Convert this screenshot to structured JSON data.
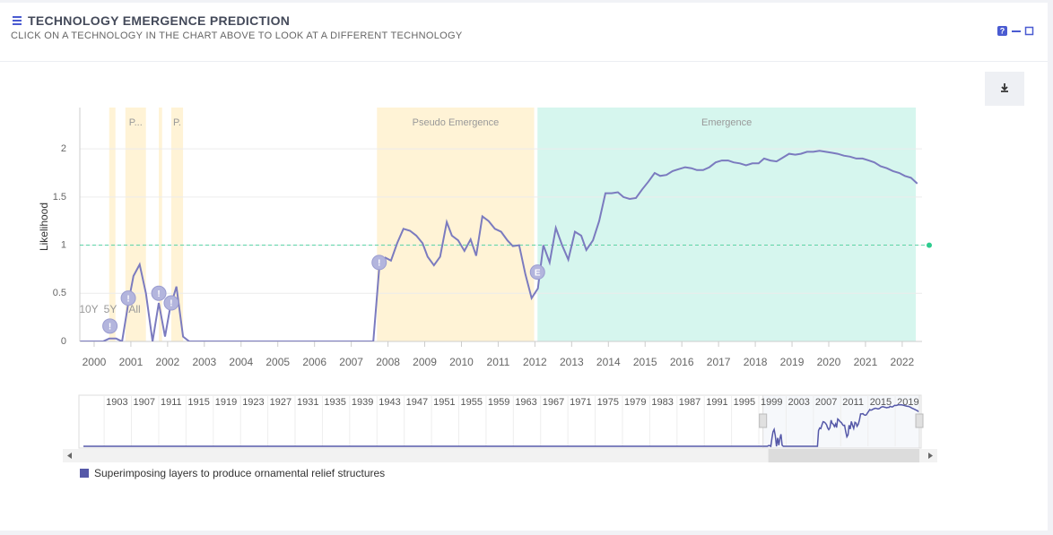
{
  "header": {
    "title": "TECHNOLOGY EMERGENCE PREDICTION",
    "subtitle": "CLICK ON A TECHNOLOGY IN THE CHART ABOVE TO LOOK AT A DIFFERENT TECHNOLOGY"
  },
  "range_buttons": [
    "10Y",
    "5Y",
    "All"
  ],
  "chart_data": {
    "type": "line",
    "y_label": "Likelihood",
    "x": [
      1999.62,
      2000.24,
      2000.41,
      2000.6,
      2000.76,
      2000.93,
      2001.07,
      2001.24,
      2001.41,
      2001.59,
      2001.76,
      2001.93,
      2002.07,
      2002.24,
      2002.42,
      2002.59,
      2007.6,
      2007.76,
      2007.93,
      2008.08,
      2008.25,
      2008.42,
      2008.6,
      2008.77,
      2008.94,
      2009.08,
      2009.25,
      2009.42,
      2009.6,
      2009.74,
      2009.91,
      2010.08,
      2010.25,
      2010.4,
      2010.57,
      2010.74,
      2010.91,
      2011.08,
      2011.25,
      2011.4,
      2011.57,
      2011.74,
      2011.91,
      2012.08,
      2012.23,
      2012.4,
      2012.57,
      2012.74,
      2012.91,
      2013.09,
      2013.26,
      2013.4,
      2013.58,
      2013.75,
      2013.92,
      2014.09,
      2014.26,
      2014.41,
      2014.58,
      2014.75,
      2014.92,
      2015.09,
      2015.26,
      2015.41,
      2015.58,
      2015.75,
      2015.92,
      2016.09,
      2016.26,
      2016.41,
      2016.58,
      2016.75,
      2016.92,
      2017.09,
      2017.26,
      2017.41,
      2017.58,
      2017.75,
      2017.92,
      2018.09,
      2018.24,
      2018.41,
      2018.58,
      2018.75,
      2018.92,
      2019.09,
      2019.24,
      2019.41,
      2019.58,
      2019.75,
      2019.92,
      2020.09,
      2020.24,
      2020.41,
      2020.58,
      2020.75,
      2020.92,
      2021.09,
      2021.24,
      2021.41,
      2021.58,
      2021.75,
      2021.92,
      2022.07,
      2022.24,
      2022.41
    ],
    "series": [
      {
        "name": "Superimposing layers to produce ornamental relief structures",
        "color": "#7b7bbf",
        "legend_color": "#5558a8",
        "values": [
          0,
          0,
          0.03,
          0.03,
          0,
          0.4,
          0.68,
          0.8,
          0.5,
          0,
          0.4,
          0.05,
          0.35,
          0.57,
          0.05,
          0,
          0,
          0.75,
          0.87,
          0.84,
          1.02,
          1.17,
          1.15,
          1.1,
          1.02,
          0.88,
          0.79,
          0.88,
          1.24,
          1.1,
          1.05,
          0.94,
          1.06,
          0.89,
          1.3,
          1.25,
          1.17,
          1.14,
          1.05,
          0.99,
          1.0,
          0.7,
          0.45,
          0.55,
          1.0,
          0.82,
          1.18,
          1.0,
          0.85,
          1.14,
          1.1,
          0.95,
          1.05,
          1.25,
          1.54,
          1.54,
          1.55,
          1.5,
          1.48,
          1.49,
          1.58,
          1.66,
          1.75,
          1.72,
          1.73,
          1.77,
          1.79,
          1.81,
          1.8,
          1.78,
          1.78,
          1.81,
          1.86,
          1.88,
          1.88,
          1.86,
          1.85,
          1.83,
          1.85,
          1.85,
          1.9,
          1.88,
          1.87,
          1.91,
          1.95,
          1.94,
          1.95,
          1.97,
          1.97,
          1.98,
          1.97,
          1.96,
          1.95,
          1.93,
          1.92,
          1.9,
          1.9,
          1.88,
          1.86,
          1.82,
          1.8,
          1.77,
          1.75,
          1.72,
          1.7,
          1.64
        ]
      }
    ],
    "xlim": [
      1999.61,
      2022.54
    ],
    "ylim": [
      0,
      2.43
    ],
    "xticks": [
      2000,
      2001,
      2002,
      2003,
      2004,
      2005,
      2006,
      2007,
      2008,
      2009,
      2010,
      2011,
      2012,
      2013,
      2014,
      2015,
      2016,
      2017,
      2018,
      2019,
      2020,
      2021,
      2022
    ],
    "yticks": [
      0,
      0.5,
      1,
      1.5,
      2
    ],
    "grid": true,
    "threshold": {
      "value": 1,
      "color": "#2ecc8f"
    },
    "bands": [
      {
        "start": 2000.41,
        "end": 2000.58,
        "color": "#fff3d6"
      },
      {
        "label": "P...",
        "start": 2000.85,
        "end": 2001.41,
        "color": "#fff3d6"
      },
      {
        "start": 2001.76,
        "end": 2001.85,
        "color": "#fff3d6"
      },
      {
        "label": "P.",
        "start": 2002.1,
        "end": 2002.42,
        "color": "#fff3d6"
      },
      {
        "label": "Pseudo Emergence",
        "start": 2007.7,
        "end": 2011.98,
        "color": "#fff3d6"
      },
      {
        "label": "Emergence",
        "start": 2012.07,
        "end": 2022.37,
        "color": "#d6f6ee"
      }
    ],
    "flags": [
      {
        "label": "!",
        "x": 2000.43,
        "y": 0.16
      },
      {
        "label": "!",
        "x": 2000.93,
        "y": 0.45
      },
      {
        "label": "!",
        "x": 2001.76,
        "y": 0.5
      },
      {
        "label": "!",
        "x": 2002.1,
        "y": 0.4
      },
      {
        "label": "!",
        "x": 2007.76,
        "y": 0.82
      },
      {
        "label": "E",
        "x": 2012.07,
        "y": 0.72
      }
    ],
    "navigator": {
      "xlim": [
        1899.3,
        2022.8
      ],
      "xticks": [
        1903,
        1907,
        1911,
        1915,
        1919,
        1923,
        1927,
        1931,
        1935,
        1939,
        1943,
        1947,
        1951,
        1955,
        1959,
        1963,
        1967,
        1971,
        1975,
        1979,
        1983,
        1987,
        1991,
        1995,
        1999,
        2003,
        2007,
        2011,
        2015,
        2019
      ]
    }
  }
}
